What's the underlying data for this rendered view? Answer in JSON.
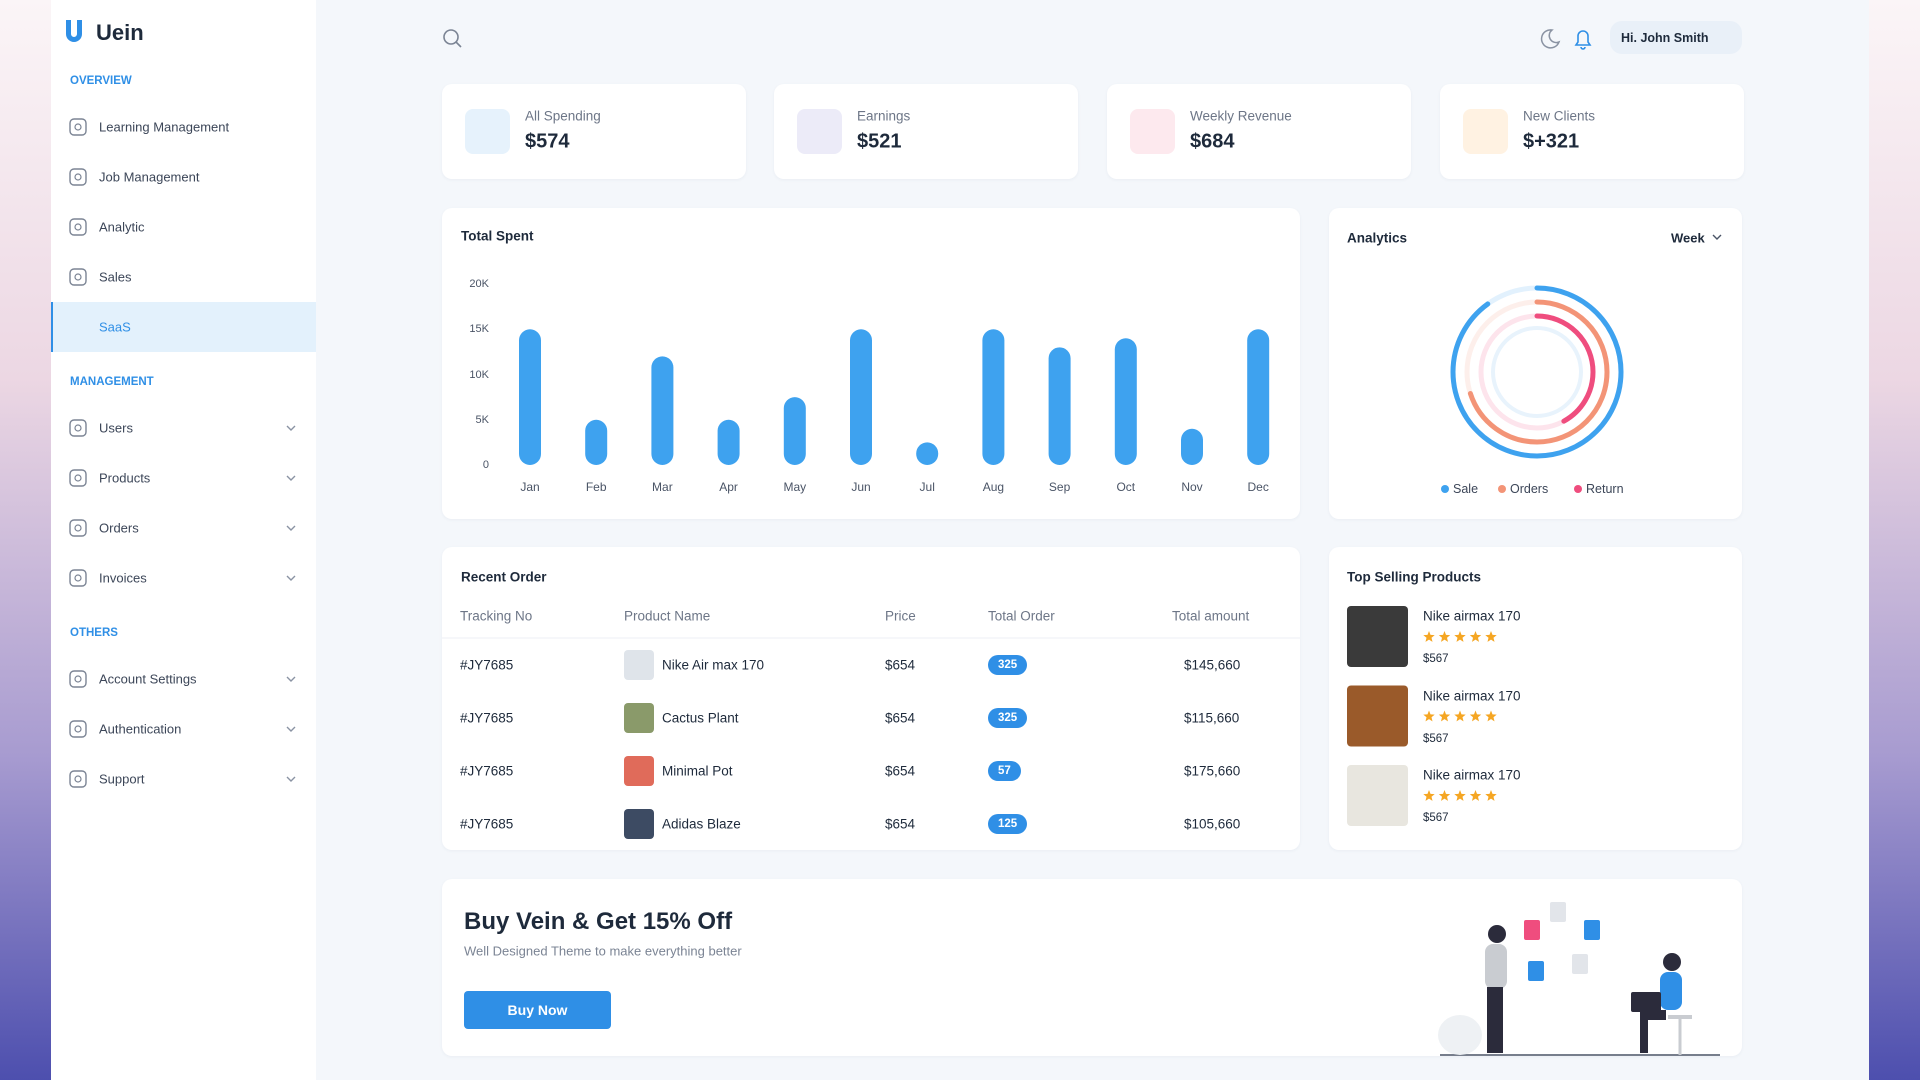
{
  "sidebar": {
    "brand": "Uein",
    "sections": [
      {
        "heading": "OVERVIEW",
        "items": [
          {
            "label": "Learning Management"
          },
          {
            "label": "Job Management"
          },
          {
            "label": "Analytic"
          },
          {
            "label": "Sales"
          },
          {
            "label": "SaaS",
            "active": true
          }
        ]
      },
      {
        "heading": "MANAGEMENT",
        "items": [
          {
            "label": "Users",
            "expandable": true
          },
          {
            "label": "Products",
            "expandable": true
          },
          {
            "label": "Orders",
            "expandable": true
          },
          {
            "label": "Invoices",
            "expandable": true
          }
        ]
      },
      {
        "heading": "OTHERS",
        "items": [
          {
            "label": "Account Settings",
            "expandable": true
          },
          {
            "label": "Authentication",
            "expandable": true
          },
          {
            "label": "Support",
            "expandable": true
          }
        ]
      }
    ]
  },
  "header": {
    "greeting": "Hi. John Smith"
  },
  "stats": [
    {
      "label": "All Spending",
      "value": "$574",
      "color": "#3ea2ef",
      "bg": "#e6f2fc"
    },
    {
      "label": "Earnings",
      "value": "$521",
      "color": "#6d6bc5",
      "bg": "#ecebf8"
    },
    {
      "label": "Weekly Revenue",
      "value": "$684",
      "color": "#ef4d7e",
      "bg": "#fde9ee"
    },
    {
      "label": "New Clients",
      "value": "$+321",
      "color": "#f5a742",
      "bg": "#fff2e2"
    }
  ],
  "total_spent": {
    "type": "bar",
    "title": "Total Spent",
    "categories": [
      "Jan",
      "Feb",
      "Mar",
      "Apr",
      "May",
      "Jun",
      "Jul",
      "Aug",
      "Sep",
      "Oct",
      "Nov",
      "Dec"
    ],
    "values": [
      15000,
      5000,
      12000,
      5000,
      7500,
      15000,
      2500,
      15000,
      13000,
      14000,
      4000,
      15000
    ],
    "color": "#3ea2ef",
    "ylim": [
      0,
      20000
    ],
    "yticks": [
      0,
      {
        "value": 5000,
        "label": "5K"
      },
      {
        "value": 10000,
        "label": "10K"
      },
      {
        "value": 15000,
        "label": "15K"
      },
      {
        "value": 20000,
        "label": "20K"
      }
    ]
  },
  "analytics": {
    "type": "donut",
    "title": "Analytics",
    "period": "Week",
    "series": [
      {
        "name": "Sale",
        "color": "#3ea2ef",
        "value": 90
      },
      {
        "name": "Orders",
        "color": "#f39477",
        "value": 70
      },
      {
        "name": "Return",
        "color": "#ef4d7e",
        "value": 42
      }
    ]
  },
  "recent_orders": {
    "title": "Recent Order",
    "columns": [
      "Tracking No",
      "Product Name",
      "Price",
      "Total Order",
      "Total amount"
    ],
    "rows": [
      [
        "#JY7685",
        "Nike Air max 170",
        "$654",
        325,
        "$145,660"
      ],
      [
        "#JY7685",
        "Cactus Plant",
        "$654",
        325,
        "$115,660"
      ],
      [
        "#JY7685",
        "Minimal Pot",
        "$654",
        57,
        "$175,660"
      ],
      [
        "#JY7685",
        "Adidas Blaze",
        "$654",
        125,
        "$105,660"
      ]
    ]
  },
  "top_selling": {
    "title": "Top Selling Products",
    "items": [
      {
        "name": "Nike airmax 170",
        "rating": 5,
        "price": "$567"
      },
      {
        "name": "Nike airmax 170",
        "rating": 5,
        "price": "$567"
      },
      {
        "name": "Nike airmax 170",
        "rating": 5,
        "price": "$567"
      }
    ]
  },
  "banner": {
    "title": "Buy Vein & Get 15% Off",
    "subtitle": "Well Designed Theme to make everything better",
    "button": "Buy Now"
  }
}
